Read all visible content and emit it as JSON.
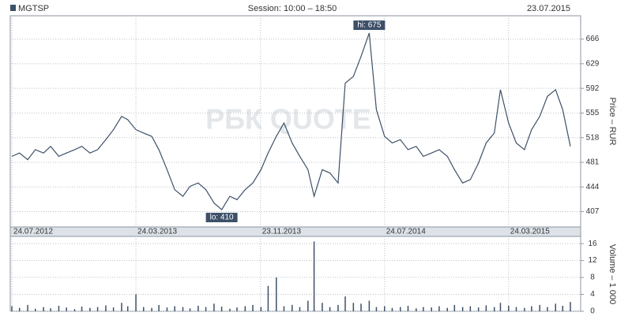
{
  "header": {
    "ticker": "MGTSP",
    "session": "Session: 10:00 – 18:50",
    "date": "23.07.2015"
  },
  "watermark": "РБК QUOTE",
  "chart_data": [
    {
      "type": "line",
      "y_label": "Price – RUR",
      "color": "#3d5068",
      "x": [
        "24.07.2012",
        "08.08.2012",
        "24.08.2012",
        "08.09.2012",
        "24.09.2012",
        "08.10.2012",
        "24.10.2012",
        "08.11.2012",
        "24.11.2012",
        "08.12.2012",
        "24.12.2012",
        "08.01.2013",
        "24.01.2013",
        "08.02.2013",
        "24.02.2013",
        "08.03.2013",
        "24.03.2013",
        "08.04.2013",
        "24.04.2013",
        "08.05.2013",
        "24.05.2013",
        "08.06.2013",
        "24.06.2013",
        "08.07.2013",
        "24.07.2013",
        "08.08.2013",
        "24.08.2013",
        "08.09.2013",
        "24.09.2013",
        "08.10.2013",
        "24.10.2013",
        "08.11.2013",
        "24.11.2013",
        "08.12.2013",
        "24.12.2013",
        "08.01.2014",
        "24.01.2014",
        "08.02.2014",
        "24.02.2014",
        "08.03.2014",
        "24.03.2014",
        "08.04.2014",
        "24.04.2014",
        "08.05.2014",
        "24.05.2014",
        "08.06.2014",
        "24.06.2014",
        "08.07.2014",
        "24.07.2014",
        "08.08.2014",
        "24.08.2014",
        "08.09.2014",
        "24.09.2014",
        "08.10.2014",
        "24.10.2014",
        "08.11.2014",
        "24.11.2014",
        "08.12.2014",
        "24.12.2014",
        "08.01.2015",
        "24.01.2015",
        "08.02.2015",
        "24.02.2015",
        "08.03.2015",
        "24.03.2015",
        "08.04.2015",
        "24.04.2015",
        "08.05.2015",
        "24.05.2015",
        "08.06.2015",
        "24.06.2015",
        "08.07.2015",
        "23.07.2015"
      ],
      "values": [
        490,
        495,
        485,
        500,
        495,
        505,
        490,
        495,
        500,
        505,
        495,
        500,
        515,
        530,
        550,
        545,
        530,
        525,
        520,
        500,
        470,
        440,
        430,
        445,
        450,
        440,
        420,
        410,
        430,
        425,
        440,
        450,
        470,
        495,
        520,
        540,
        510,
        490,
        470,
        430,
        470,
        465,
        450,
        600,
        610,
        640,
        675,
        560,
        520,
        510,
        515,
        500,
        505,
        490,
        495,
        500,
        490,
        470,
        450,
        455,
        480,
        510,
        525,
        590,
        540,
        510,
        500,
        530,
        550,
        580,
        590,
        560,
        505
      ],
      "xlim": [
        "24.07.2012",
        "23.07.2015"
      ],
      "xticks": [
        "24.07.2012",
        "24.03.2013",
        "23.11.2013",
        "24.07.2014",
        "24.03.2015"
      ],
      "ylim": [
        384,
        701
      ],
      "yticks": [
        407,
        444,
        481,
        518,
        555,
        592,
        629,
        666
      ],
      "grid": true,
      "annotations": [
        {
          "text": "hi: 675",
          "x": "24.06.2014",
          "value": 675,
          "position": "above"
        },
        {
          "text": "lo: 410",
          "x": "08.09.2013",
          "value": 410,
          "position": "below"
        }
      ]
    },
    {
      "type": "bar",
      "y_label": "Volume – 1 000",
      "color": "#3d5068",
      "x": [
        "24.07.2012",
        "08.08.2012",
        "24.08.2012",
        "08.09.2012",
        "24.09.2012",
        "08.10.2012",
        "24.10.2012",
        "08.11.2012",
        "24.11.2012",
        "08.12.2012",
        "24.12.2012",
        "08.01.2013",
        "24.01.2013",
        "08.02.2013",
        "24.02.2013",
        "08.03.2013",
        "24.03.2013",
        "08.04.2013",
        "24.04.2013",
        "08.05.2013",
        "24.05.2013",
        "08.06.2013",
        "24.06.2013",
        "08.07.2013",
        "24.07.2013",
        "08.08.2013",
        "24.08.2013",
        "08.09.2013",
        "24.09.2013",
        "08.10.2013",
        "24.10.2013",
        "08.11.2013",
        "24.11.2013",
        "08.12.2013",
        "24.12.2013",
        "08.01.2014",
        "24.01.2014",
        "08.02.2014",
        "24.02.2014",
        "08.03.2014",
        "24.03.2014",
        "08.04.2014",
        "24.04.2014",
        "08.05.2014",
        "24.05.2014",
        "08.06.2014",
        "24.06.2014",
        "08.07.2014",
        "24.07.2014",
        "08.08.2014",
        "24.08.2014",
        "08.09.2014",
        "24.09.2014",
        "08.10.2014",
        "24.10.2014",
        "08.11.2014",
        "24.11.2014",
        "08.12.2014",
        "24.12.2014",
        "08.01.2015",
        "24.01.2015",
        "08.02.2015",
        "24.02.2015",
        "08.03.2015",
        "24.03.2015",
        "08.04.2015",
        "24.04.2015",
        "08.05.2015",
        "24.05.2015",
        "08.06.2015",
        "24.06.2015",
        "08.07.2015",
        "23.07.2015"
      ],
      "values": [
        1.2,
        0.8,
        1.5,
        0.6,
        1.0,
        0.7,
        1.3,
        0.9,
        0.5,
        1.1,
        0.8,
        1.0,
        1.4,
        0.9,
        2.0,
        1.2,
        4.0,
        1.0,
        0.8,
        1.5,
        0.9,
        1.2,
        1.0,
        0.7,
        1.3,
        1.0,
        1.8,
        1.1,
        0.6,
        0.9,
        1.2,
        1.5,
        1.0,
        6.0,
        8.0,
        1.2,
        1.5,
        1.0,
        2.5,
        16.5,
        2.0,
        1.0,
        1.5,
        3.5,
        2.0,
        1.8,
        2.5,
        1.0,
        1.2,
        0.8,
        1.0,
        1.3,
        0.7,
        1.0,
        0.9,
        1.2,
        0.8,
        1.5,
        1.0,
        1.2,
        0.9,
        1.4,
        1.0,
        2.0,
        1.3,
        1.0,
        0.8,
        1.2,
        1.5,
        1.0,
        1.8,
        1.3,
        2.2
      ],
      "xlim": [
        "24.07.2012",
        "23.07.2015"
      ],
      "ylim": [
        0,
        17.7
      ],
      "yticks": [
        0,
        4,
        8,
        12,
        16
      ],
      "grid": true
    }
  ]
}
